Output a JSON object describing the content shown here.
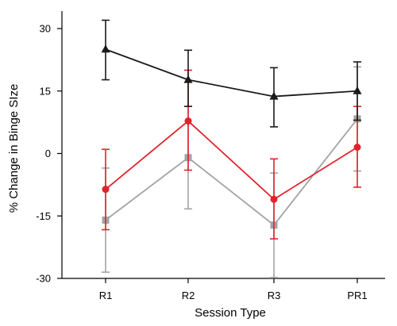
{
  "chart_data": {
    "type": "line",
    "xlabel": "Session Type",
    "ylabel": "% Change in Binge SIze",
    "categories": [
      "R1",
      "R2",
      "R3",
      "PR1"
    ],
    "ylim": [
      -30,
      30
    ],
    "yticks": [
      30,
      15,
      0,
      -15,
      -30
    ],
    "grid": false,
    "legend": "none",
    "error_bars": true,
    "series": [
      {
        "marker": "triangle",
        "color": "#1a1a1a",
        "values": [
          25,
          17.7,
          13.7,
          15
        ],
        "err_low": [
          17.7,
          11.3,
          6.4,
          8
        ],
        "err_high": [
          32,
          24.8,
          20.6,
          22
        ]
      },
      {
        "marker": "circle",
        "color": "#e2222b",
        "values": [
          -8.6,
          7.8,
          -11,
          1.5
        ],
        "err_low": [
          -18.3,
          -4,
          -20.5,
          -8.1
        ],
        "err_high": [
          1,
          20,
          -1.3,
          11.3
        ]
      },
      {
        "marker": "square",
        "color": "#a3a3a3",
        "values": [
          -16,
          -1,
          -17.2,
          8.3
        ],
        "err_low": [
          -28.5,
          -13.3,
          -29.8,
          -4.2
        ],
        "err_high": [
          -3.5,
          11.3,
          -4.7,
          20.8
        ]
      }
    ]
  }
}
